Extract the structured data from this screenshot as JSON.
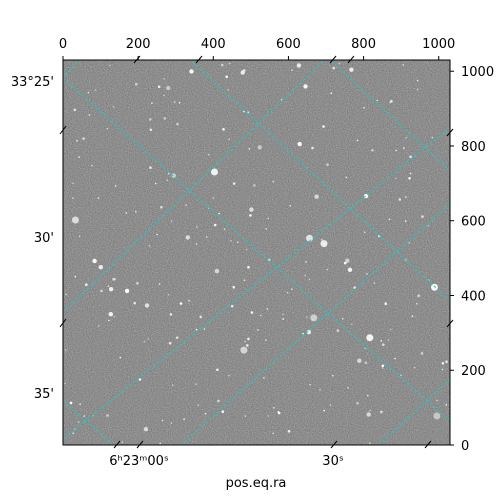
{
  "figure": {
    "pixel_axis_top": {
      "ticks": [
        "0",
        "200",
        "400",
        "600",
        "800",
        "1000"
      ],
      "range": [
        0,
        1030
      ]
    },
    "pixel_axis_right": {
      "ticks": [
        "0",
        "200",
        "400",
        "600",
        "800",
        "1000"
      ],
      "range": [
        0,
        1030
      ]
    },
    "dec_axis_left": {
      "ticks": [
        "33°25'",
        "30'",
        "35'"
      ]
    },
    "ra_axis_bottom": {
      "ticks": [
        "6ʰ23ᵐ00ˢ",
        "30ˢ"
      ],
      "label": "pos.eq.ra"
    },
    "image": {
      "colormap": "gray",
      "background": "#6e6e6e"
    },
    "grid_color": "#22c7c7"
  }
}
